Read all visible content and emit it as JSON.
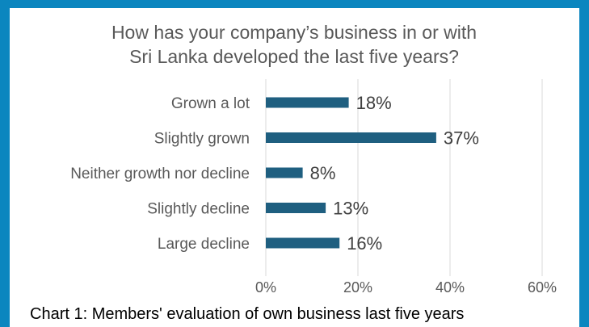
{
  "chart_data": {
    "type": "bar",
    "orientation": "horizontal",
    "title": [
      "How has your company’s business in or with",
      "Sri Lanka developed the last five years?"
    ],
    "categories": [
      "Grown a lot",
      "Slightly grown",
      "Neither growth nor decline",
      "Slightly decline",
      "Large decline"
    ],
    "values": [
      18,
      37,
      8,
      13,
      16
    ],
    "value_labels": [
      "18%",
      "37%",
      "8%",
      "13%",
      "16%"
    ],
    "xlim": [
      0,
      60
    ],
    "xticks": [
      "0%",
      "20%",
      "40%",
      "60%"
    ],
    "grid": "vertical",
    "colors": {
      "bar": "#1f5f80",
      "frame": "#0b86bf"
    }
  },
  "caption": "Chart 1: Members' evaluation of own business last five years"
}
